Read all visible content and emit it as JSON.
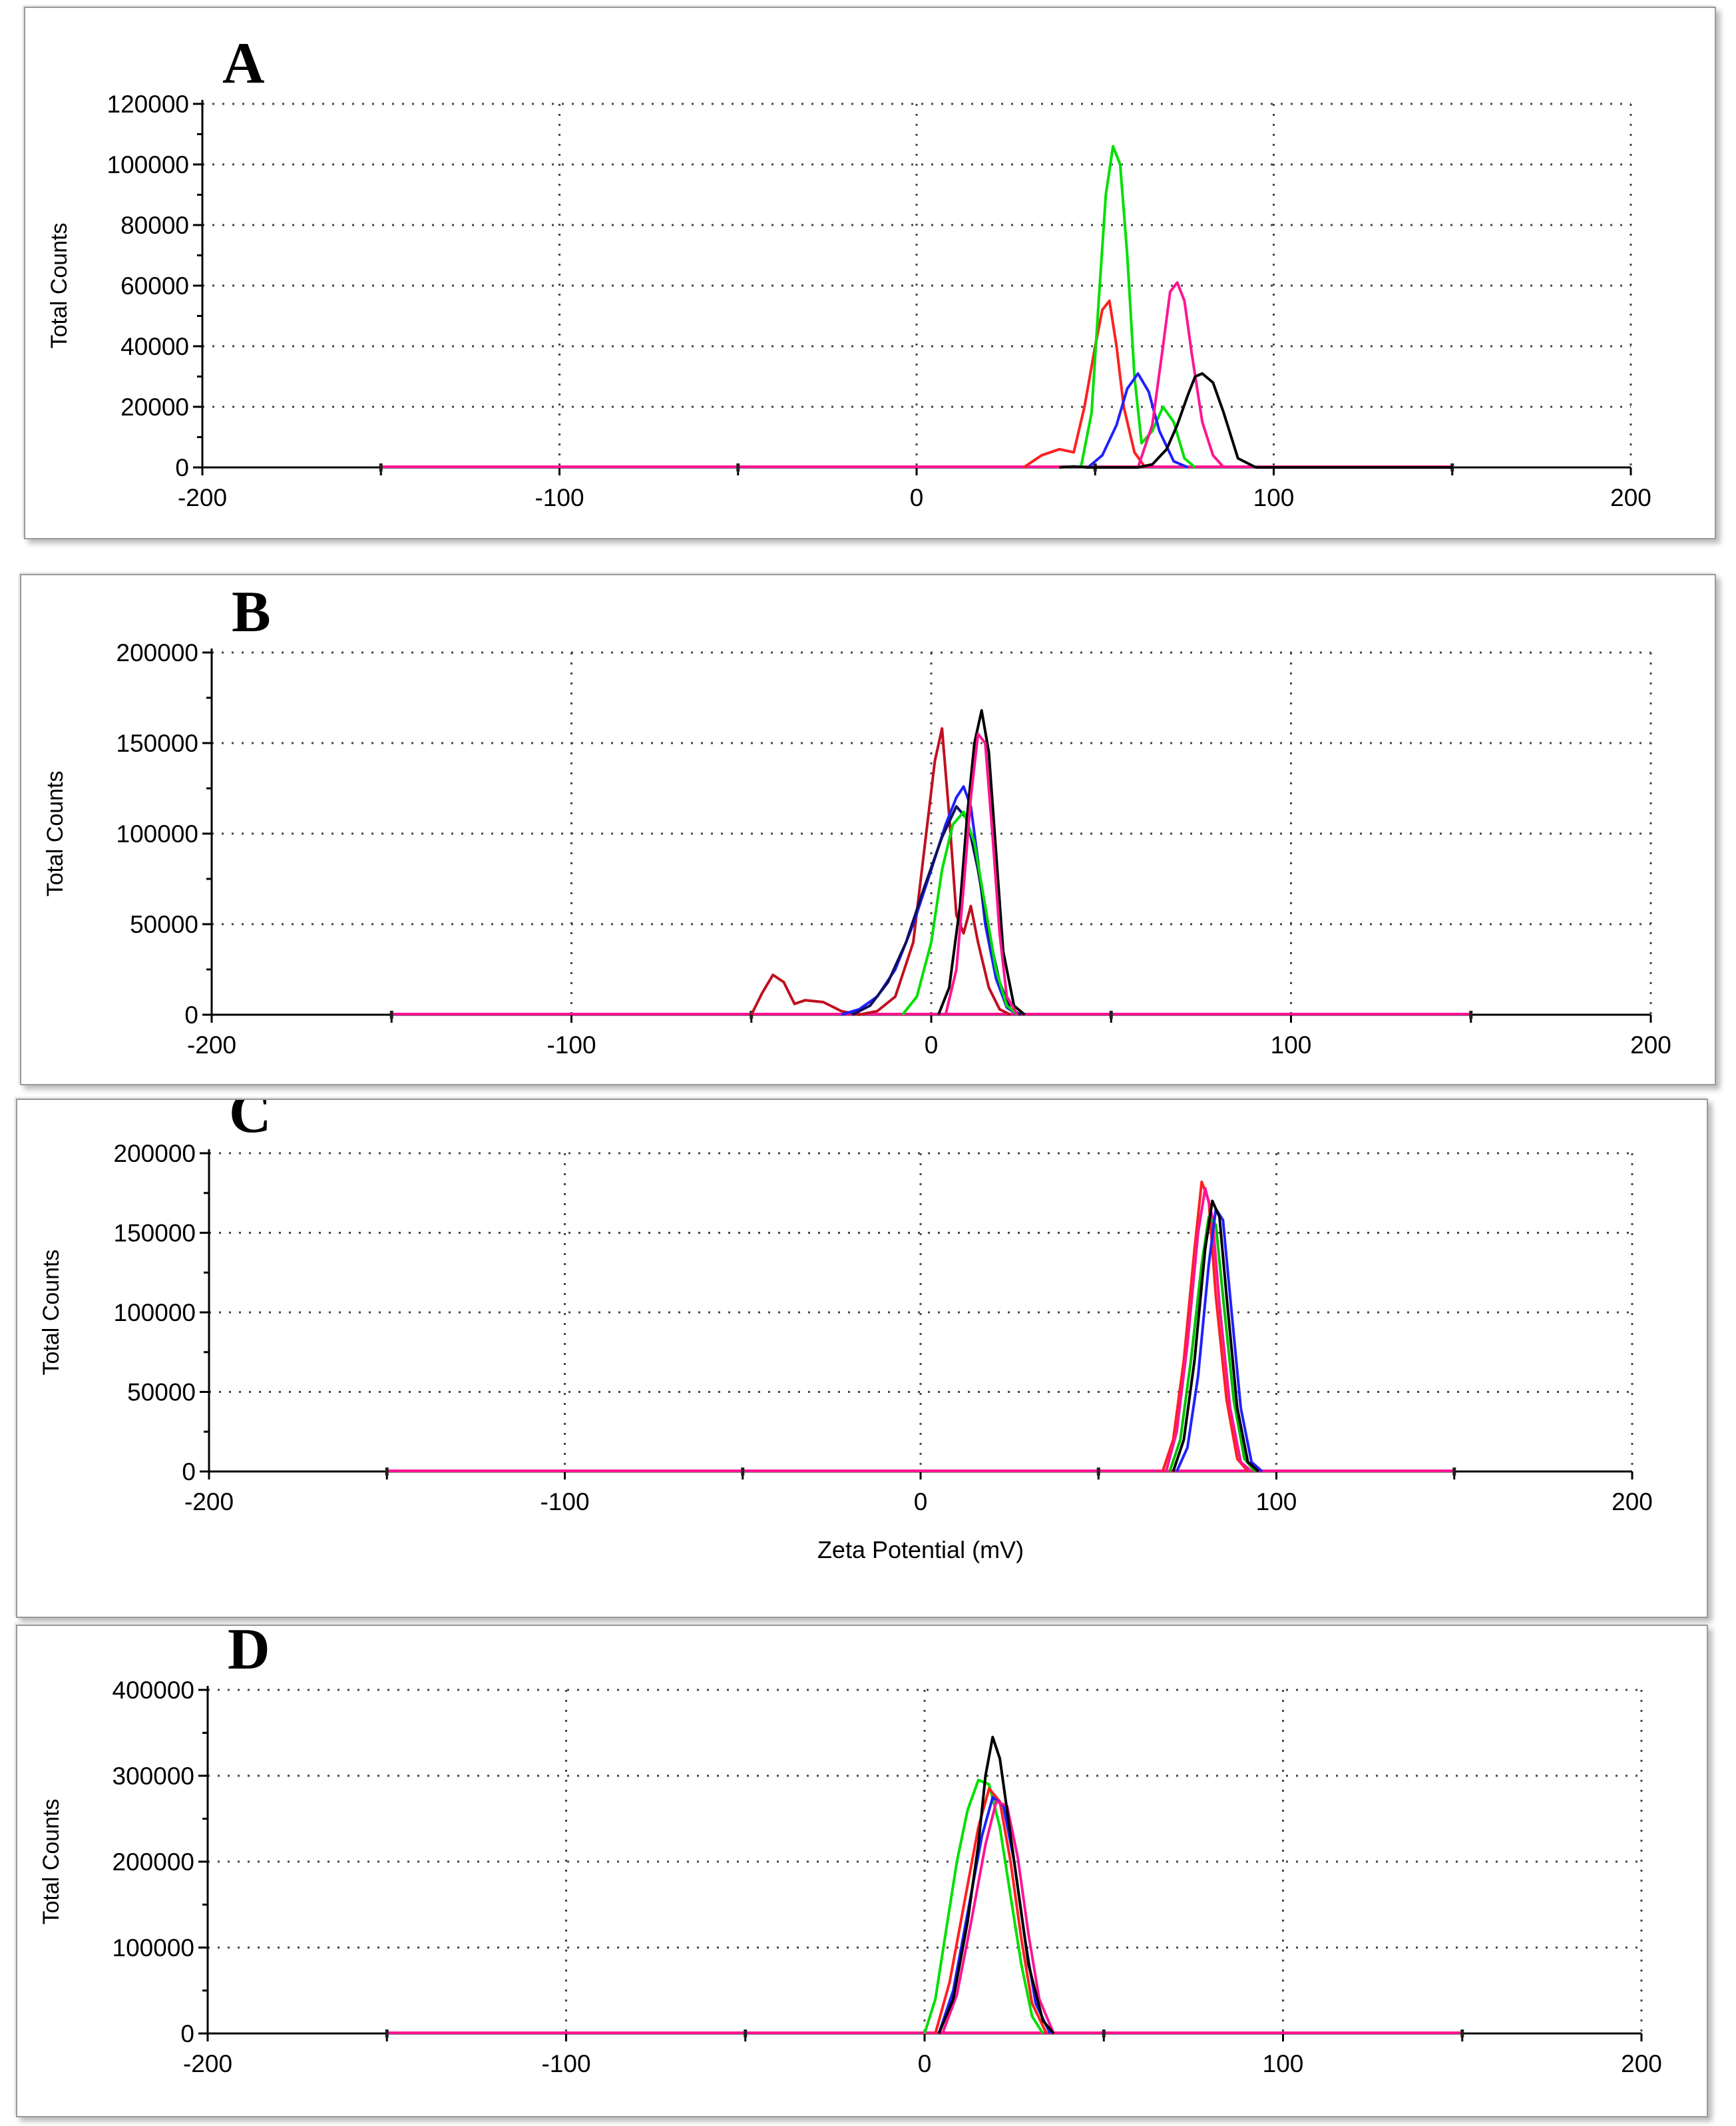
{
  "chart_data": [
    {
      "panel": "A",
      "type": "line",
      "xlabel": "",
      "ylabel": "Total Counts",
      "xlim": [
        -200,
        200
      ],
      "ylim": [
        0,
        120000
      ],
      "x_ticks": [
        "-200",
        "-100",
        "0",
        "100",
        "200"
      ],
      "y_ticks": [
        "0",
        "20000",
        "40000",
        "60000",
        "80000",
        "100000",
        "120000"
      ],
      "grid": true,
      "baseline_color": "#ff1493",
      "baseline_range": [
        -150,
        150
      ],
      "series": [
        {
          "name": "red",
          "color": "#ff2020",
          "x": [
            30,
            35,
            40,
            44,
            47,
            50,
            52,
            54,
            56,
            58,
            61,
            64
          ],
          "y": [
            0,
            4000,
            6000,
            5000,
            20000,
            40000,
            52000,
            55000,
            40000,
            20000,
            5000,
            0
          ]
        },
        {
          "name": "green",
          "color": "#00e000",
          "x": [
            46,
            49,
            51,
            53,
            55,
            57,
            59,
            61,
            63,
            66,
            69,
            72,
            75,
            78
          ],
          "y": [
            0,
            18000,
            55000,
            90000,
            106000,
            100000,
            70000,
            30000,
            8000,
            12000,
            20000,
            15000,
            3000,
            0
          ]
        },
        {
          "name": "blue",
          "color": "#2020ff",
          "x": [
            48,
            52,
            56,
            59,
            62,
            65,
            68,
            72,
            76
          ],
          "y": [
            0,
            4000,
            14000,
            26000,
            31000,
            25000,
            12000,
            2000,
            0
          ]
        },
        {
          "name": "pink",
          "color": "#ff1493",
          "x": [
            62,
            66,
            69,
            71,
            73,
            75,
            77,
            80,
            83,
            86
          ],
          "y": [
            0,
            14000,
            40000,
            58000,
            61000,
            55000,
            38000,
            15000,
            4000,
            0
          ]
        },
        {
          "name": "black",
          "color": "#000000",
          "x": [
            40,
            44,
            48,
            55,
            62,
            66,
            70,
            73,
            76,
            78,
            80,
            83,
            86,
            90,
            95,
            100,
            150
          ],
          "y": [
            0,
            300,
            0,
            0,
            0,
            1000,
            6000,
            14000,
            24000,
            30000,
            31000,
            28000,
            18000,
            3000,
            0,
            0,
            0
          ]
        }
      ]
    },
    {
      "panel": "B",
      "type": "line",
      "xlabel": "",
      "ylabel": "Total Counts",
      "xlim": [
        -200,
        200
      ],
      "ylim": [
        0,
        200000
      ],
      "x_ticks": [
        "-200",
        "-100",
        "0",
        "100",
        "200"
      ],
      "y_ticks": [
        "0",
        "50000",
        "100000",
        "150000",
        "200000"
      ],
      "grid": true,
      "baseline_color": "#ff1493",
      "baseline_range": [
        -150,
        150
      ],
      "series": [
        {
          "name": "dark-red",
          "color": "#c01020",
          "x": [
            -50,
            -47,
            -44,
            -41,
            -38,
            -35,
            -30,
            -25,
            -20,
            -15,
            -10,
            -5,
            -2,
            1,
            3,
            5,
            7,
            9,
            11,
            13,
            16,
            19,
            22
          ],
          "y": [
            0,
            12000,
            22000,
            18000,
            6000,
            8000,
            7000,
            2000,
            0,
            2000,
            10000,
            40000,
            90000,
            140000,
            158000,
            110000,
            55000,
            45000,
            60000,
            40000,
            15000,
            3000,
            0
          ]
        },
        {
          "name": "blue",
          "color": "#2020ff",
          "x": [
            -25,
            -20,
            -15,
            -10,
            -5,
            0,
            4,
            7,
            9,
            11,
            13,
            15,
            18,
            21,
            24
          ],
          "y": [
            0,
            3000,
            10000,
            25000,
            50000,
            80000,
            105000,
            120000,
            126000,
            115000,
            85000,
            50000,
            20000,
            4000,
            0
          ]
        },
        {
          "name": "navy",
          "color": "#101060",
          "x": [
            -22,
            -17,
            -12,
            -7,
            -2,
            3,
            7,
            10,
            13,
            16,
            19,
            22,
            25
          ],
          "y": [
            0,
            5000,
            18000,
            40000,
            70000,
            98000,
            115000,
            108000,
            80000,
            45000,
            18000,
            3000,
            0
          ]
        },
        {
          "name": "green",
          "color": "#00e000",
          "x": [
            -8,
            -4,
            0,
            3,
            6,
            9,
            12,
            15,
            18,
            21,
            24
          ],
          "y": [
            0,
            10000,
            40000,
            80000,
            105000,
            112000,
            95000,
            60000,
            25000,
            5000,
            0
          ]
        },
        {
          "name": "black",
          "color": "#000000",
          "x": [
            2,
            5,
            8,
            10,
            12,
            14,
            16,
            18,
            20,
            23,
            26
          ],
          "y": [
            0,
            15000,
            60000,
            110000,
            150000,
            168000,
            145000,
            90000,
            35000,
            5000,
            0
          ]
        },
        {
          "name": "pink",
          "color": "#ff1493",
          "x": [
            4,
            7,
            9,
            11,
            13,
            15,
            17,
            19,
            21,
            24
          ],
          "y": [
            0,
            25000,
            70000,
            120000,
            155000,
            150000,
            100000,
            45000,
            10000,
            0
          ]
        }
      ]
    },
    {
      "panel": "C",
      "type": "line",
      "xlabel": "Zeta Potential (mV)",
      "ylabel": "Total Counts",
      "xlim": [
        -200,
        200
      ],
      "ylim": [
        0,
        200000
      ],
      "x_ticks": [
        "-200",
        "-100",
        "0",
        "100",
        "200"
      ],
      "y_ticks": [
        "0",
        "50000",
        "100000",
        "150000",
        "200000"
      ],
      "grid": true,
      "baseline_color": "#ff1493",
      "baseline_range": [
        -150,
        150
      ],
      "series": [
        {
          "name": "red",
          "color": "#ff2020",
          "x": [
            68,
            71,
            74,
            77,
            79,
            81,
            83,
            86,
            89,
            92
          ],
          "y": [
            0,
            20000,
            70000,
            140000,
            182000,
            170000,
            110000,
            45000,
            8000,
            0
          ]
        },
        {
          "name": "pink",
          "color": "#ff1493",
          "x": [
            69,
            72,
            75,
            78,
            80,
            82,
            84,
            87,
            90,
            93
          ],
          "y": [
            0,
            25000,
            80000,
            150000,
            178000,
            160000,
            105000,
            40000,
            6000,
            0
          ]
        },
        {
          "name": "green",
          "color": "#00c000",
          "x": [
            70,
            73,
            76,
            79,
            81,
            83,
            85,
            88,
            91,
            94
          ],
          "y": [
            0,
            20000,
            70000,
            130000,
            160000,
            155000,
            110000,
            45000,
            8000,
            0
          ]
        },
        {
          "name": "blue",
          "color": "#2020ff",
          "x": [
            72,
            75,
            78,
            81,
            83,
            85,
            87,
            90,
            93,
            96
          ],
          "y": [
            0,
            15000,
            60000,
            130000,
            165000,
            158000,
            110000,
            40000,
            6000,
            0
          ]
        },
        {
          "name": "black",
          "color": "#000000",
          "x": [
            71,
            74,
            77,
            80,
            82,
            84,
            86,
            89,
            92,
            95
          ],
          "y": [
            0,
            20000,
            70000,
            140000,
            170000,
            160000,
            110000,
            40000,
            6000,
            0
          ]
        }
      ]
    },
    {
      "panel": "D",
      "type": "line",
      "xlabel": "",
      "ylabel": "Total Counts",
      "xlim": [
        -200,
        200
      ],
      "ylim": [
        0,
        400000
      ],
      "x_ticks": [
        "-200",
        "-100",
        "0",
        "100",
        "200"
      ],
      "y_ticks": [
        "0",
        "100000",
        "200000",
        "300000",
        "400000"
      ],
      "grid": true,
      "baseline_color": "#ff1493",
      "baseline_range": [
        -150,
        150
      ],
      "series": [
        {
          "name": "green",
          "color": "#00e000",
          "x": [
            0,
            3,
            6,
            9,
            12,
            15,
            18,
            21,
            24,
            27,
            30,
            33
          ],
          "y": [
            0,
            40000,
            120000,
            200000,
            260000,
            295000,
            290000,
            240000,
            160000,
            80000,
            20000,
            0
          ]
        },
        {
          "name": "red",
          "color": "#ff2020",
          "x": [
            3,
            7,
            11,
            15,
            18,
            21,
            24,
            27,
            30,
            34
          ],
          "y": [
            0,
            60000,
            150000,
            240000,
            285000,
            270000,
            200000,
            110000,
            35000,
            0
          ]
        },
        {
          "name": "blue",
          "color": "#2020ff",
          "x": [
            4,
            8,
            12,
            16,
            19,
            22,
            25,
            28,
            31,
            35
          ],
          "y": [
            0,
            50000,
            140000,
            230000,
            275000,
            265000,
            200000,
            110000,
            35000,
            0
          ]
        },
        {
          "name": "pink",
          "color": "#ff1493",
          "x": [
            5,
            9,
            13,
            17,
            20,
            23,
            26,
            29,
            32,
            36
          ],
          "y": [
            0,
            45000,
            130000,
            220000,
            270000,
            265000,
            205000,
            115000,
            40000,
            0
          ]
        },
        {
          "name": "black",
          "color": "#000000",
          "x": [
            4,
            8,
            12,
            15,
            17,
            19,
            21,
            23,
            26,
            29,
            33,
            36
          ],
          "y": [
            0,
            40000,
            130000,
            220000,
            300000,
            345000,
            320000,
            260000,
            170000,
            80000,
            15000,
            0
          ]
        }
      ]
    }
  ]
}
